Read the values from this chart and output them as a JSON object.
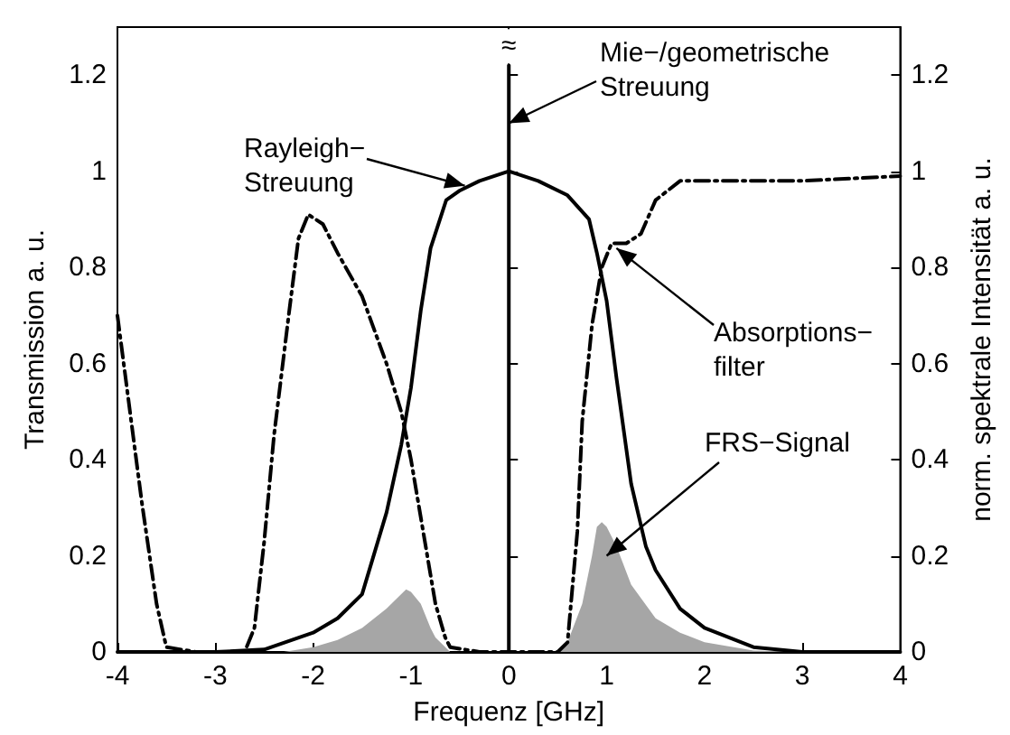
{
  "chart_data": {
    "type": "line",
    "xlabel": "Frequenz [GHz]",
    "ylabel": "Transmission a. u.",
    "y2label": "norm. spektrale Intensität a. u.",
    "xlim": [
      -4,
      4
    ],
    "xticks": [
      -4,
      -3,
      -2,
      -1,
      0,
      1,
      2,
      3,
      4
    ],
    "ylim": [
      0,
      1.3
    ],
    "yticks": [
      0,
      0.2,
      0.4,
      0.6,
      0.8,
      1,
      1.2
    ],
    "y2lim": [
      0,
      1.3
    ],
    "y2ticks": [
      0,
      0.2,
      0.4,
      0.6,
      0.8,
      1,
      1.2
    ],
    "grid": false,
    "marker": "none",
    "series": [
      {
        "color": "#000000",
        "line_style": "dashdot",
        "x": [
          -4,
          -3.75,
          -3.6,
          -3.5,
          -3.2,
          -2.8,
          -2.7,
          -2.6,
          -2.5,
          -2.4,
          -2.25,
          -2.15,
          -2.05,
          -1.9,
          -1.75,
          -1.5,
          -1.25,
          -1.1,
          -1,
          -0.9,
          -0.75,
          -0.65,
          -0.6,
          -0.3,
          0,
          0.3,
          0.5,
          0.6,
          0.7,
          0.75,
          0.85,
          0.95,
          1.05,
          1.2,
          1.35,
          1.5,
          1.75,
          2,
          2.5,
          3,
          3.5,
          4
        ],
        "values": [
          0.7,
          0.31,
          0.1,
          0.01,
          0,
          0,
          0,
          0.05,
          0.23,
          0.45,
          0.7,
          0.86,
          0.91,
          0.89,
          0.83,
          0.74,
          0.6,
          0.5,
          0.4,
          0.28,
          0.1,
          0.03,
          0.01,
          0,
          0,
          0,
          0,
          0.02,
          0.25,
          0.48,
          0.68,
          0.8,
          0.85,
          0.85,
          0.87,
          0.94,
          0.98,
          0.98,
          0.98,
          0.98,
          0.985,
          0.99
        ]
      },
      {
        "color": "#000000",
        "line_style": "solid",
        "x": [
          -4,
          -3,
          -2.5,
          -2,
          -1.75,
          -1.5,
          -1.25,
          -1.1,
          -1,
          -0.9,
          -0.8,
          -0.64,
          -0.5,
          -0.3,
          0,
          0.3,
          0.6,
          0.82,
          0.9,
          1,
          1.1,
          1.25,
          1.4,
          1.5,
          1.75,
          2,
          2.5,
          3,
          4
        ],
        "values": [
          0,
          0,
          0.005,
          0.04,
          0.07,
          0.12,
          0.29,
          0.43,
          0.55,
          0.71,
          0.84,
          0.94,
          0.96,
          0.98,
          1,
          0.98,
          0.95,
          0.9,
          0.83,
          0.73,
          0.57,
          0.35,
          0.22,
          0.17,
          0.09,
          0.05,
          0.01,
          0,
          0
        ]
      },
      {
        "color": "#000000",
        "line_style": "solid",
        "x": [
          0,
          0
        ],
        "values": [
          0,
          1.22
        ]
      },
      {
        "type": "area",
        "color": "#a6a6a6",
        "x": [
          -2.3,
          -2,
          -1.75,
          -1.5,
          -1.25,
          -1.1,
          -1.05,
          -1,
          -0.9,
          -0.8,
          -0.75,
          -0.6,
          0,
          0.5,
          0.6,
          0.75,
          0.85,
          0.9,
          0.95,
          1,
          1.1,
          1.25,
          1.5,
          1.75,
          2,
          2.5,
          3
        ],
        "values": [
          0,
          0.01,
          0.025,
          0.05,
          0.09,
          0.12,
          0.13,
          0.125,
          0.1,
          0.05,
          0.03,
          0,
          0,
          0,
          0.02,
          0.1,
          0.2,
          0.26,
          0.27,
          0.26,
          0.22,
          0.14,
          0.07,
          0.04,
          0.02,
          0.003,
          0
        ]
      }
    ],
    "annotations": [
      {
        "text": "Rayleigh−\nStreuung",
        "x": -0.45,
        "y": 0.97
      },
      {
        "text": "Mie−/geometrische\nStreuung",
        "x": 0,
        "y": 1.1
      },
      {
        "text": "Absorptions−\nfilter",
        "x": 1.1,
        "y": 0.84
      },
      {
        "text": "FRS−Signal",
        "x": 1,
        "y": 0.2
      },
      {
        "text": "≈",
        "x": 0,
        "y": 1.26
      }
    ]
  }
}
